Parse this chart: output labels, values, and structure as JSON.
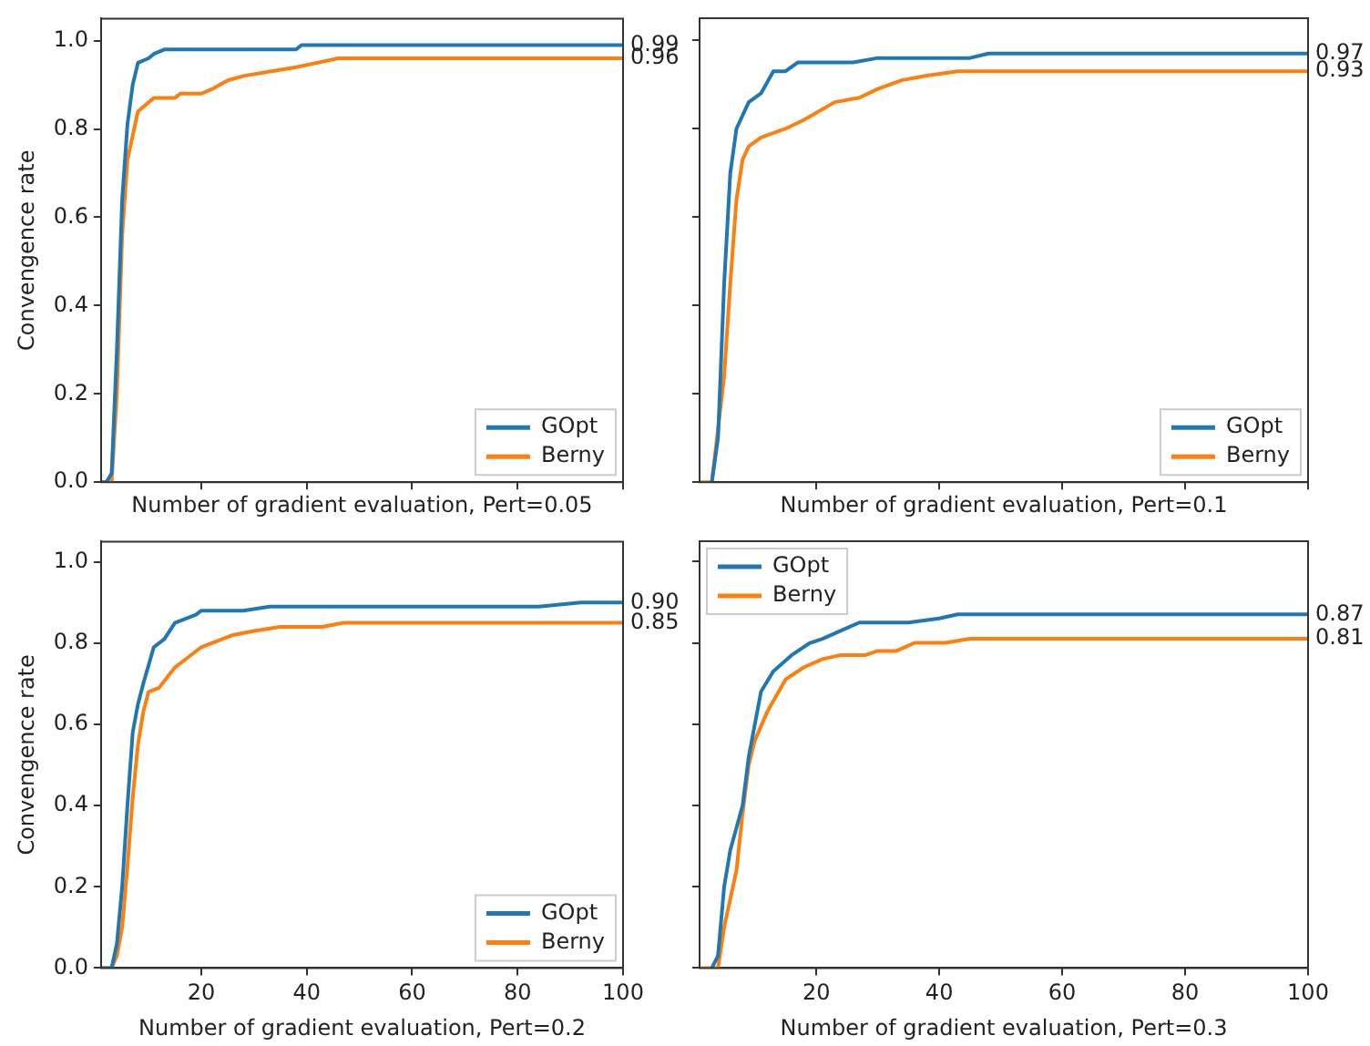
{
  "chart_data": [
    {
      "type": "line",
      "xlabel": "Number of gradient evaluation, Pert=0.05",
      "ylabel": "Convengence rate",
      "xlim": [
        1,
        100
      ],
      "xticks": [
        20,
        40,
        60,
        80,
        100
      ],
      "ylim": [
        0,
        1.05
      ],
      "yticks": [
        {
          "value": 0,
          "label": "0.0"
        },
        {
          "value": 0.2,
          "label": "0.2"
        },
        {
          "value": 0.4,
          "label": "0.4"
        },
        {
          "value": 0.6,
          "label": "0.6"
        },
        {
          "value": 0.8,
          "label": "0.8"
        },
        {
          "value": 1,
          "label": "1.0"
        }
      ],
      "tick_labels": "y",
      "grid": false,
      "legend": "bottom right",
      "marker": "none",
      "line_style": "solid",
      "series": [
        {
          "name": "GOpt",
          "color": "#1f77b4",
          "x": [
            1,
            2,
            3,
            4,
            5,
            6,
            7,
            8,
            10,
            11,
            13,
            38,
            39,
            100
          ],
          "values": [
            0,
            0,
            0.02,
            0.3,
            0.64,
            0.81,
            0.9,
            0.95,
            0.96,
            0.97,
            0.98,
            0.98,
            0.99,
            0.99
          ]
        },
        {
          "name": "Berny",
          "color": "#ff7f0e",
          "x": [
            1,
            3,
            4,
            5,
            6,
            8,
            11,
            15,
            16,
            20,
            22,
            25,
            28,
            33,
            38,
            42,
            46,
            100
          ],
          "values": [
            0,
            0,
            0.2,
            0.56,
            0.73,
            0.84,
            0.87,
            0.87,
            0.88,
            0.88,
            0.89,
            0.91,
            0.92,
            0.93,
            0.94,
            0.95,
            0.96,
            0.96
          ]
        }
      ],
      "annotations": [
        "0.99",
        "0.96"
      ]
    },
    {
      "type": "line",
      "xlabel": "Number of gradient evaluation, Pert=0.1",
      "xlim": [
        1,
        100
      ],
      "xticks": [
        20,
        40,
        60,
        80,
        100
      ],
      "ylim": [
        0,
        1.05
      ],
      "yticks": [
        0,
        0.2,
        0.4,
        0.6,
        0.8,
        1
      ],
      "tick_labels": false,
      "grid": false,
      "legend": "bottom right",
      "marker": "none",
      "line_style": "solid",
      "series": [
        {
          "name": "GOpt",
          "color": "#1f77b4",
          "x": [
            3,
            4,
            5,
            6,
            7,
            9,
            11,
            13,
            15,
            17,
            26,
            30,
            45,
            48,
            100
          ],
          "values": [
            0,
            0.1,
            0.45,
            0.7,
            0.8,
            0.86,
            0.88,
            0.93,
            0.93,
            0.95,
            0.95,
            0.96,
            0.96,
            0.97,
            0.97
          ]
        },
        {
          "name": "Berny",
          "color": "#ff7f0e",
          "x": [
            1,
            3,
            5,
            6,
            7,
            8,
            9,
            11,
            15,
            18,
            23,
            27,
            30,
            34,
            38,
            43,
            100
          ],
          "values": [
            0,
            0,
            0.24,
            0.45,
            0.64,
            0.73,
            0.76,
            0.78,
            0.8,
            0.82,
            0.86,
            0.87,
            0.89,
            0.91,
            0.92,
            0.93,
            0.93
          ]
        }
      ],
      "annotations": [
        "0.97",
        "0.93"
      ]
    },
    {
      "type": "line",
      "xlabel": "Number of gradient evaluation, Pert=0.2",
      "ylabel": "Convengence rate",
      "xlim": [
        1,
        100
      ],
      "xticks": [
        20,
        40,
        60,
        80,
        100
      ],
      "ylim": [
        0,
        1.05
      ],
      "yticks": [
        {
          "value": 0,
          "label": "0.0"
        },
        {
          "value": 0.2,
          "label": "0.2"
        },
        {
          "value": 0.4,
          "label": "0.4"
        },
        {
          "value": 0.6,
          "label": "0.6"
        },
        {
          "value": 0.8,
          "label": "0.8"
        },
        {
          "value": 1,
          "label": "1.0"
        }
      ],
      "grid": false,
      "legend": "bottom right",
      "marker": "none",
      "line_style": "solid",
      "series": [
        {
          "name": "GOpt",
          "color": "#1f77b4",
          "x": [
            1,
            3,
            4,
            5,
            6,
            7,
            8,
            9,
            11,
            13,
            15,
            17,
            19,
            20,
            28,
            33,
            65,
            84,
            92,
            100
          ],
          "values": [
            0,
            0,
            0.06,
            0.2,
            0.4,
            0.58,
            0.65,
            0.7,
            0.79,
            0.81,
            0.85,
            0.86,
            0.87,
            0.88,
            0.88,
            0.89,
            0.89,
            0.89,
            0.9,
            0.9
          ]
        },
        {
          "name": "Berny",
          "color": "#ff7f0e",
          "x": [
            1,
            3,
            4,
            5,
            6,
            7,
            8,
            9,
            10,
            12,
            15,
            19,
            20,
            22,
            24,
            26,
            30,
            35,
            43,
            47,
            100
          ],
          "values": [
            0,
            0,
            0.03,
            0.1,
            0.25,
            0.42,
            0.55,
            0.63,
            0.68,
            0.69,
            0.74,
            0.78,
            0.79,
            0.8,
            0.81,
            0.82,
            0.83,
            0.84,
            0.84,
            0.85,
            0.85
          ]
        }
      ],
      "annotations": [
        "0.90",
        "0.85"
      ]
    },
    {
      "type": "line",
      "xlabel": "Number of gradient evaluation, Pert=0.3",
      "xlim": [
        1,
        100
      ],
      "xticks": [
        20,
        40,
        60,
        80,
        100
      ],
      "ylim": [
        0,
        1.05
      ],
      "yticks": [
        0,
        0.2,
        0.4,
        0.6,
        0.8,
        1
      ],
      "tick_labels": "x",
      "grid": false,
      "legend": "top left",
      "marker": "none",
      "line_style": "solid",
      "series": [
        {
          "name": "GOpt",
          "color": "#1f77b4",
          "x": [
            3,
            4,
            5,
            6,
            8,
            9,
            11,
            13,
            16,
            19,
            21,
            24,
            27,
            30,
            35,
            40,
            43,
            100
          ],
          "values": [
            0,
            0.03,
            0.2,
            0.29,
            0.4,
            0.52,
            0.68,
            0.73,
            0.77,
            0.8,
            0.81,
            0.83,
            0.85,
            0.85,
            0.85,
            0.86,
            0.87,
            0.87
          ]
        },
        {
          "name": "Berny",
          "color": "#ff7f0e",
          "x": [
            1,
            4,
            5,
            7,
            8,
            9,
            10,
            12,
            15,
            18,
            21,
            24,
            28,
            30,
            33,
            36,
            41,
            45,
            100
          ],
          "values": [
            0,
            0,
            0.1,
            0.24,
            0.38,
            0.5,
            0.56,
            0.63,
            0.71,
            0.74,
            0.76,
            0.77,
            0.77,
            0.78,
            0.78,
            0.8,
            0.8,
            0.81,
            0.81
          ]
        }
      ],
      "annotations": [
        "0.87",
        "0.81"
      ]
    }
  ]
}
